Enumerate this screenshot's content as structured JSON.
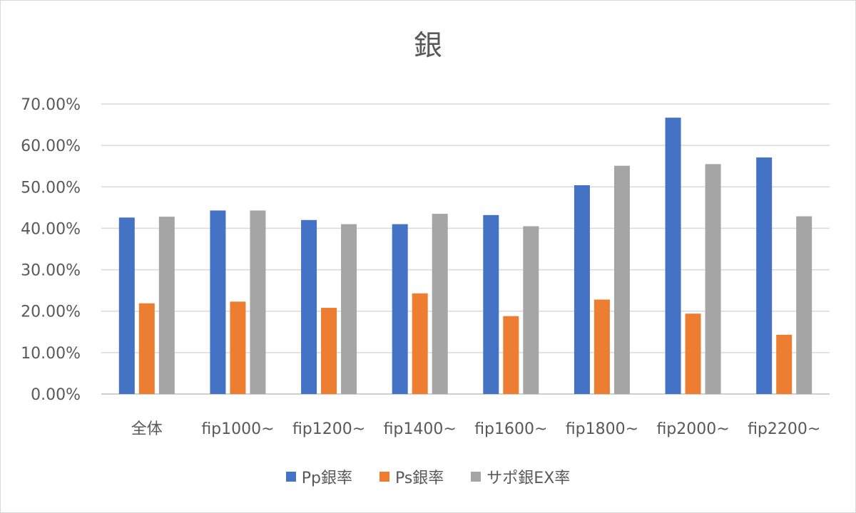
{
  "chart_data": {
    "type": "bar",
    "title": "銀",
    "categories": [
      "全体",
      "fip1000~",
      "fip1200~",
      "fip1400~",
      "fip1600~",
      "fip1800~",
      "fip2000~",
      "fip2200~"
    ],
    "series": [
      {
        "name": "Pp銀率",
        "color": "#4472c4",
        "values": [
          42.6,
          44.3,
          42.0,
          41.0,
          43.2,
          50.4,
          66.7,
          57.1
        ]
      },
      {
        "name": "Ps銀率",
        "color": "#ed7d31",
        "values": [
          21.9,
          22.3,
          20.8,
          24.3,
          18.8,
          22.8,
          19.4,
          14.3
        ]
      },
      {
        "name": "サポ銀EX率",
        "color": "#a5a5a5",
        "values": [
          42.8,
          44.3,
          41.0,
          43.5,
          40.5,
          55.1,
          55.5,
          42.9
        ]
      }
    ],
    "y_ticks": [
      "0.00%",
      "10.00%",
      "20.00%",
      "30.00%",
      "40.00%",
      "50.00%",
      "60.00%",
      "70.00%"
    ],
    "ylim": [
      0,
      70
    ],
    "grid": true,
    "legend_position": "bottom"
  }
}
